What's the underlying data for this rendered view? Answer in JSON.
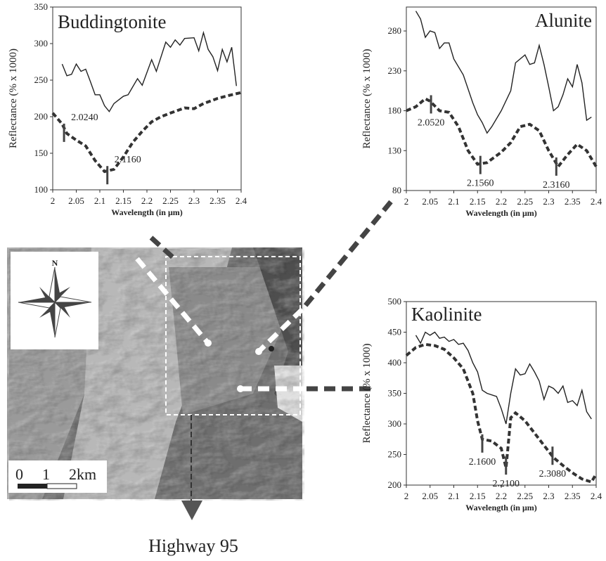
{
  "chart_data": [
    {
      "type": "line",
      "title": "Buddingtonite",
      "x_label": "Wavelength (in μm)",
      "y_label": "Reflectance (% x 1000)",
      "xlim": [
        2,
        2.4
      ],
      "xticks": [
        2,
        2.05,
        2.1,
        2.15,
        2.2,
        2.25,
        2.3,
        2.35,
        2.4
      ],
      "ylim": [
        100,
        350
      ],
      "yticks": [
        100,
        150,
        200,
        250,
        300,
        350
      ],
      "series": [
        {
          "color": "#222222",
          "style": "solid",
          "x": [
            2.02,
            2.03,
            2.04,
            2.05,
            2.06,
            2.07,
            2.08,
            2.09,
            2.1,
            2.11,
            2.12,
            2.13,
            2.15,
            2.16,
            2.18,
            2.19,
            2.21,
            2.22,
            2.24,
            2.25,
            2.26,
            2.27,
            2.28,
            2.3,
            2.31,
            2.32,
            2.33,
            2.34,
            2.35,
            2.36,
            2.37,
            2.38,
            2.39
          ],
          "values": [
            272,
            256,
            258,
            272,
            262,
            265,
            248,
            230,
            230,
            215,
            207,
            218,
            228,
            230,
            252,
            243,
            278,
            262,
            302,
            295,
            305,
            298,
            307,
            308,
            290,
            315,
            292,
            282,
            263,
            292,
            275,
            295,
            242
          ]
        },
        {
          "color": "#333333",
          "style": "dashed",
          "x": [
            2,
            2.02,
            2.03,
            2.05,
            2.07,
            2.09,
            2.11,
            2.13,
            2.15,
            2.17,
            2.19,
            2.21,
            2.23,
            2.25,
            2.28,
            2.3,
            2.32,
            2.35,
            2.38,
            2.4
          ],
          "values": [
            205,
            190,
            177,
            168,
            160,
            140,
            125,
            128,
            145,
            165,
            180,
            193,
            200,
            205,
            212,
            211,
            218,
            225,
            230,
            233
          ]
        }
      ],
      "annotations": [
        {
          "label": "2.0240",
          "x": 2.024,
          "y": 178
        },
        {
          "label": "2.1160",
          "x": 2.116,
          "y": 120
        }
      ]
    },
    {
      "type": "line",
      "title": "Alunite",
      "x_label": "Wavelength (in μm)",
      "y_label": "Reflectance (% x 1000)",
      "xlim": [
        2,
        2.4
      ],
      "xticks": [
        2,
        2.05,
        2.1,
        2.15,
        2.2,
        2.25,
        2.3,
        2.35,
        2.4
      ],
      "ylim": [
        80,
        310
      ],
      "yticks": [
        80,
        130,
        180,
        230,
        280
      ],
      "series": [
        {
          "color": "#222222",
          "style": "solid",
          "x": [
            2.02,
            2.03,
            2.04,
            2.05,
            2.06,
            2.07,
            2.08,
            2.09,
            2.1,
            2.12,
            2.14,
            2.15,
            2.16,
            2.17,
            2.18,
            2.2,
            2.22,
            2.23,
            2.25,
            2.26,
            2.27,
            2.28,
            2.29,
            2.3,
            2.31,
            2.32,
            2.33,
            2.34,
            2.35,
            2.36,
            2.37,
            2.38,
            2.39
          ],
          "values": [
            305,
            295,
            272,
            280,
            278,
            258,
            265,
            265,
            245,
            225,
            190,
            175,
            165,
            152,
            160,
            180,
            205,
            240,
            250,
            238,
            240,
            262,
            238,
            210,
            180,
            185,
            200,
            220,
            210,
            238,
            215,
            168,
            172
          ]
        },
        {
          "color": "#333333",
          "style": "dashed",
          "x": [
            2,
            2.02,
            2.04,
            2.05,
            2.07,
            2.09,
            2.11,
            2.13,
            2.15,
            2.17,
            2.2,
            2.22,
            2.24,
            2.26,
            2.28,
            2.3,
            2.32,
            2.34,
            2.36,
            2.38,
            2.4
          ],
          "values": [
            180,
            185,
            195,
            192,
            180,
            178,
            160,
            130,
            113,
            115,
            128,
            140,
            160,
            163,
            155,
            130,
            110,
            125,
            138,
            130,
            110
          ]
        }
      ],
      "annotations": [
        {
          "label": "2.0520",
          "x": 2.052,
          "y": 188
        },
        {
          "label": "2.1560",
          "x": 2.156,
          "y": 112
        },
        {
          "label": "2.3160",
          "x": 2.316,
          "y": 110
        }
      ]
    },
    {
      "type": "line",
      "title": "Kaolinite",
      "x_label": "Wavelength (in μm)",
      "y_label": "Reflectance (% x 1000)",
      "xlim": [
        2,
        2.4
      ],
      "xticks": [
        2,
        2.05,
        2.1,
        2.15,
        2.2,
        2.25,
        2.3,
        2.35,
        2.4
      ],
      "ylim": [
        200,
        500
      ],
      "yticks": [
        200,
        250,
        300,
        350,
        400,
        450,
        500
      ],
      "series": [
        {
          "color": "#222222",
          "style": "solid",
          "x": [
            2.02,
            2.03,
            2.04,
            2.05,
            2.06,
            2.07,
            2.08,
            2.09,
            2.1,
            2.11,
            2.12,
            2.13,
            2.14,
            2.15,
            2.16,
            2.17,
            2.19,
            2.2,
            2.21,
            2.22,
            2.23,
            2.24,
            2.25,
            2.26,
            2.27,
            2.28,
            2.29,
            2.3,
            2.31,
            2.32,
            2.33,
            2.34,
            2.35,
            2.36,
            2.37,
            2.38,
            2.39
          ],
          "values": [
            445,
            432,
            450,
            445,
            450,
            440,
            442,
            435,
            438,
            430,
            432,
            420,
            400,
            385,
            355,
            350,
            345,
            325,
            300,
            350,
            390,
            380,
            382,
            398,
            385,
            370,
            340,
            362,
            358,
            350,
            362,
            335,
            338,
            330,
            355,
            320,
            308
          ]
        },
        {
          "color": "#333333",
          "style": "dashed",
          "x": [
            2,
            2.02,
            2.04,
            2.06,
            2.08,
            2.1,
            2.12,
            2.14,
            2.15,
            2.16,
            2.18,
            2.2,
            2.21,
            2.22,
            2.23,
            2.25,
            2.27,
            2.29,
            2.31,
            2.33,
            2.35,
            2.37,
            2.39,
            2.4
          ],
          "values": [
            412,
            425,
            430,
            428,
            422,
            408,
            390,
            350,
            305,
            275,
            272,
            260,
            228,
            310,
            318,
            305,
            285,
            265,
            245,
            232,
            220,
            210,
            205,
            218
          ]
        }
      ],
      "annotations": [
        {
          "label": "2.1600",
          "x": 2.16,
          "y": 268
        },
        {
          "label": "2.2100",
          "x": 2.21,
          "y": 232
        },
        {
          "label": "2.3080",
          "x": 2.308,
          "y": 248
        }
      ]
    }
  ],
  "map": {
    "north": "N",
    "scale_labels": [
      "0",
      "1",
      "2km"
    ],
    "road": "Highway 95"
  }
}
